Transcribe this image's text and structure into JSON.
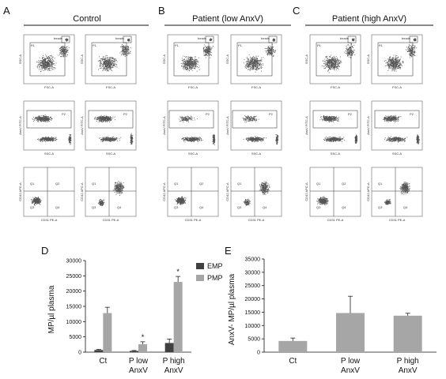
{
  "panel_letters": {
    "a": "A",
    "b": "B",
    "c": "C",
    "d": "D",
    "e": "E"
  },
  "groups": {
    "control": "Control",
    "patient_low": "Patient (low AnxV)",
    "patient_high": "Patient (high AnxV)"
  },
  "facs": {
    "beads": "beads",
    "p1": "P1",
    "p2": "P2",
    "ssc": "SSC-A",
    "fsc": "FSC-A",
    "anxv": "AnxV FITC-A",
    "cd42": "CD42 APC-A",
    "cd31": "CD31 PE-A",
    "q1": "Q1",
    "q2": "Q2",
    "q3": "Q3",
    "q4": "Q4"
  },
  "colors": {
    "emp": "#404040",
    "pmp": "#a6a6a6",
    "anxv_bar": "#a6a6a6",
    "scatter": "#555555"
  },
  "chart_data": [
    {
      "type": "bar",
      "panel": "D",
      "categories": [
        "Ct",
        "P low AnxV",
        "P high AnxV"
      ],
      "series": [
        {
          "name": "EMP",
          "values": [
            700,
            400,
            3000
          ],
          "errors": [
            200,
            150,
            1300
          ]
        },
        {
          "name": "PMP",
          "values": [
            12800,
            2600,
            23000
          ],
          "errors": [
            1900,
            800,
            1800
          ]
        }
      ],
      "significance": [
        "",
        "*",
        "*"
      ],
      "ylabel": "MP/µl plasma",
      "xlabel": "",
      "ylim": [
        0,
        30000
      ],
      "yticks": [
        0,
        5000,
        10000,
        15000,
        20000,
        25000,
        30000
      ],
      "legend": "top-right",
      "grid": false
    },
    {
      "type": "bar",
      "panel": "E",
      "categories": [
        "Ct",
        "P low AnxV",
        "P high AnxV"
      ],
      "series": [
        {
          "values": [
            4200,
            14700,
            13700
          ],
          "errors": [
            1100,
            6300,
            900
          ]
        }
      ],
      "ylabel": "AnxV- MP/µl plasma",
      "xlabel": "",
      "ylim": [
        0,
        35000
      ],
      "yticks": [
        0,
        5000,
        10000,
        15000,
        20000,
        25000,
        30000,
        35000
      ],
      "grid": false
    }
  ]
}
